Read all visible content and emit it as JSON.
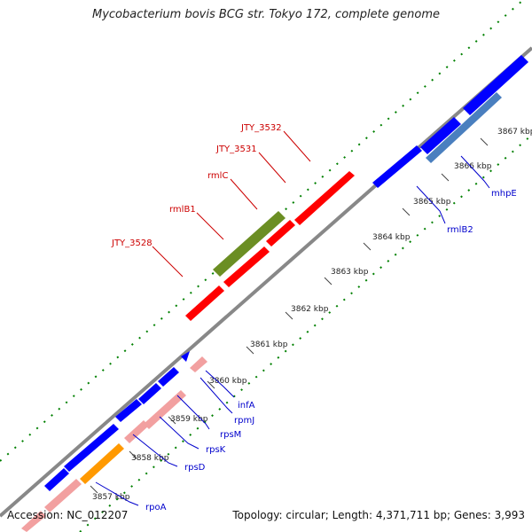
{
  "title": "Mycobacterium bovis BCG str. Tokyo 172, complete genome",
  "accession": "Accession: NC_012207",
  "topology": "Topology: circular; Length: 4,371,711 bp; Genes: 3,993",
  "colors": {
    "forward_gene": "#ff0000",
    "forward_pseudo": "#f2a0a0",
    "reverse_gene": "#0000ff",
    "highlight_green": "#6b8e23",
    "highlight_orange": "#ff9900",
    "highlight_steel": "#4a7fbf",
    "backbone": "#888888",
    "gc_dots": "#008000",
    "label_red": "#cc0000",
    "label_blue": "#0000cc"
  },
  "ticks": [
    {
      "label": "3857 kbp"
    },
    {
      "label": "3858 kbp"
    },
    {
      "label": "3859 kbp"
    },
    {
      "label": "3860 kbp"
    },
    {
      "label": "3861 kbp"
    },
    {
      "label": "3862 kbp"
    },
    {
      "label": "3863 kbp"
    },
    {
      "label": "3864 kbp"
    },
    {
      "label": "3865 kbp"
    },
    {
      "label": "3866 kbp"
    },
    {
      "label": "3867 kbp"
    }
  ],
  "gene_labels_forward": [
    "JTY_3532",
    "JTY_3531",
    "rmlC",
    "rmlB1",
    "JTY_3528"
  ],
  "gene_labels_reverse": [
    "mhpE",
    "rmlB2",
    "infA",
    "rpmJ",
    "rpsM",
    "rpsK",
    "rpsD",
    "rpoA"
  ]
}
